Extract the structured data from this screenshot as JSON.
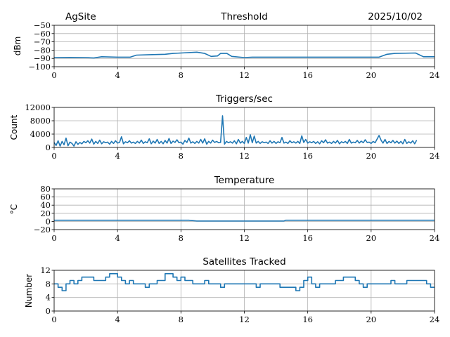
{
  "header": {
    "site": "AgSite",
    "date": "2025/10/02"
  },
  "colors": {
    "line": "#1f77b4",
    "grid": "#b0b0b0"
  },
  "chart_data": [
    {
      "type": "line",
      "title": "Threshold",
      "xlabel": "",
      "ylabel": "dBm",
      "xlim": [
        0,
        24
      ],
      "ylim": [
        -100,
        -50
      ],
      "grid": true,
      "xticks": [
        "0",
        "4",
        "8",
        "12",
        "16",
        "20",
        "24"
      ],
      "yticks": [
        -100,
        -90,
        -80,
        -70,
        -60,
        -50
      ],
      "ytick_labels": [
        "−100",
        "−90",
        "−80",
        "−70",
        "−60",
        "−50"
      ],
      "x": [
        0,
        1,
        2,
        2.5,
        3,
        4,
        4.8,
        5.2,
        6,
        7,
        7.5,
        8,
        9,
        9.5,
        9.9,
        10.3,
        10.5,
        10.9,
        11.2,
        12,
        12.5,
        16,
        20.5,
        21,
        21.5,
        22.8,
        23.3,
        24
      ],
      "y": [
        -89,
        -88.8,
        -89,
        -89.5,
        -88,
        -88.5,
        -88.5,
        -86,
        -85.5,
        -85,
        -84,
        -83.5,
        -82.5,
        -84,
        -87.5,
        -87,
        -84,
        -84,
        -87.5,
        -89,
        -88.5,
        -88.5,
        -88.5,
        -85,
        -84,
        -83.5,
        -88,
        -88
      ]
    },
    {
      "type": "line",
      "title": "Triggers/sec",
      "xlabel": "",
      "ylabel": "Count",
      "xlim": [
        0,
        24
      ],
      "ylim": [
        0,
        12000
      ],
      "grid": true,
      "xticks": [
        "0",
        "4",
        "8",
        "12",
        "16",
        "20",
        "24"
      ],
      "yticks": [
        0,
        4000,
        8000,
        12000
      ],
      "ytick_labels": [
        "0",
        "4000",
        "8000",
        "12000"
      ],
      "x_step": 0.125,
      "values": [
        1500,
        600,
        2000,
        400,
        1800,
        800,
        2800,
        500,
        1600,
        1200,
        400,
        1700,
        900,
        1500,
        1100,
        1800,
        1400,
        2000,
        1300,
        2500,
        1000,
        1800,
        1200,
        2200,
        1100,
        1700,
        1400,
        1600,
        1000,
        1800,
        1200,
        2000,
        1300,
        1500,
        3200,
        1100,
        1700,
        1400,
        2000,
        1300,
        1600,
        1200,
        1800,
        1300,
        2200,
        1200,
        1700,
        1400,
        2600,
        1100,
        1900,
        1300,
        2400,
        1200,
        1800,
        1100,
        2100,
        1300,
        2700,
        1200,
        1900,
        1500,
        2300,
        1400,
        1600,
        1000,
        2100,
        1500,
        2800,
        1300,
        1700,
        1200,
        1800,
        1300,
        2400,
        1300,
        2600,
        1000,
        1800,
        1300,
        2200,
        1500,
        1800,
        1400,
        1500,
        9500,
        1000,
        1800,
        1400,
        1700,
        1300,
        2000,
        1100,
        2400,
        1300,
        1800,
        1200,
        3000,
        1300,
        3800,
        1400,
        3400,
        1300,
        1800,
        1200,
        1700,
        1400,
        1600,
        1200,
        2000,
        1300,
        1800,
        1200,
        1700,
        1400,
        3000,
        1300,
        1600,
        1200,
        2000,
        1400,
        1700,
        1300,
        1800,
        1200,
        3500,
        1500,
        2400,
        1300,
        1700,
        1400,
        1800,
        1200,
        1700,
        1100,
        2000,
        1400,
        2300,
        1300,
        1600,
        1200,
        1800,
        1300,
        2100,
        1100,
        1700,
        1400,
        1800,
        1200,
        2400,
        1300,
        1600,
        1400,
        2100,
        1300,
        1900,
        1400,
        2300,
        1500,
        1600,
        1200,
        1800,
        1400,
        2500,
        3600,
        2200,
        1300,
        2400,
        1200,
        1800,
        1400,
        2100,
        1300,
        1900,
        1200,
        1800,
        1100,
        2400,
        1200,
        1700,
        1300,
        2000,
        1100,
        2200
      ]
    },
    {
      "type": "line",
      "title": "Temperature",
      "xlabel": "",
      "ylabel": "°C",
      "xlim": [
        0,
        24
      ],
      "ylim": [
        -20,
        80
      ],
      "grid": true,
      "xticks": [
        "0",
        "4",
        "8",
        "12",
        "16",
        "20",
        "24"
      ],
      "yticks": [
        -20,
        0,
        20,
        40,
        60,
        80
      ],
      "ytick_labels": [
        "−20",
        "0",
        "20",
        "40",
        "60",
        "80"
      ],
      "x": [
        0,
        8.5,
        9.0,
        14.5,
        14.6,
        24
      ],
      "y": [
        3,
        3,
        1,
        1,
        3,
        3
      ]
    },
    {
      "type": "line",
      "title": "Satellites Tracked",
      "xlabel": "",
      "ylabel": "Number",
      "xlim": [
        0,
        24
      ],
      "ylim": [
        0,
        12
      ],
      "grid": true,
      "xticks": [
        "0",
        "4",
        "8",
        "12",
        "16",
        "20",
        "24"
      ],
      "yticks": [
        0,
        4,
        8,
        12
      ],
      "ytick_labels": [
        "0",
        "4",
        "8",
        "12"
      ],
      "x_step": 0.25,
      "values": [
        8,
        7,
        6,
        8,
        9,
        8,
        9,
        10,
        10,
        10,
        9,
        9,
        9,
        10,
        11,
        11,
        10,
        9,
        8,
        9,
        8,
        8,
        8,
        7,
        8,
        8,
        9,
        9,
        11,
        11,
        10,
        9,
        10,
        9,
        9,
        8,
        8,
        8,
        9,
        8,
        8,
        8,
        7,
        8,
        8,
        8,
        8,
        8,
        8,
        8,
        8,
        7,
        8,
        8,
        8,
        8,
        8,
        7,
        7,
        7,
        7,
        6,
        7,
        9,
        10,
        8,
        7,
        8,
        8,
        8,
        8,
        9,
        9,
        10,
        10,
        10,
        9,
        8,
        7,
        8,
        8,
        8,
        8,
        8,
        8,
        9,
        8,
        8,
        8,
        9,
        9,
        9,
        9,
        9,
        8,
        7,
        7
      ]
    }
  ]
}
